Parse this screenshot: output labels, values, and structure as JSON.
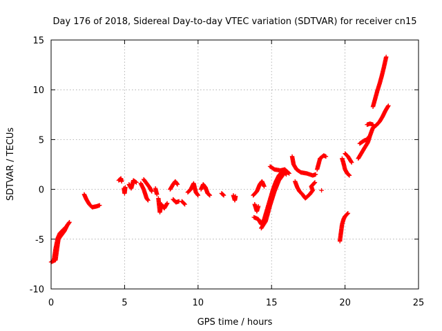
{
  "chart_data": {
    "type": "scatter",
    "title": "Day 176 of 2018, Sidereal Day-to-day VTEC variation (SDTVAR) for receiver cn15",
    "xlabel": "GPS time / hours",
    "ylabel": "SDTVAR / TECUs",
    "xlim": [
      0,
      25
    ],
    "ylim": [
      -10,
      15
    ],
    "xticks": [
      "0",
      "5",
      "10",
      "15",
      "20",
      "25"
    ],
    "yticks": [
      "-10",
      "-5",
      "0",
      "5",
      "10",
      "15"
    ],
    "grid": true,
    "marker": "+",
    "color": "#ff0000",
    "segments": [
      [
        [
          0.0,
          -7.3
        ],
        [
          0.3,
          -7.1
        ],
        [
          0.4,
          -6.0
        ],
        [
          0.5,
          -5.0
        ],
        [
          0.7,
          -4.6
        ],
        [
          0.9,
          -4.2
        ],
        [
          1.1,
          -3.6
        ],
        [
          1.25,
          -3.3
        ]
      ],
      [
        [
          0.2,
          -7.0
        ],
        [
          0.3,
          -6.0
        ],
        [
          0.45,
          -4.9
        ],
        [
          0.6,
          -4.4
        ],
        [
          0.8,
          -4.1
        ],
        [
          1.0,
          -3.8
        ]
      ],
      [
        [
          2.25,
          -0.5
        ],
        [
          2.4,
          -1.0
        ],
        [
          2.6,
          -1.5
        ],
        [
          2.8,
          -1.8
        ],
        [
          3.1,
          -1.7
        ],
        [
          3.3,
          -1.6
        ]
      ],
      [
        [
          4.6,
          0.9
        ],
        [
          4.75,
          1.1
        ],
        [
          4.8,
          0.8
        ]
      ],
      [
        [
          4.95,
          0.1
        ],
        [
          5.0,
          -0.4
        ],
        [
          5.05,
          0.2
        ]
      ],
      [
        [
          5.3,
          0.5
        ],
        [
          5.45,
          0.1
        ],
        [
          5.6,
          0.9
        ],
        [
          5.8,
          0.7
        ]
      ],
      [
        [
          6.1,
          0.6
        ],
        [
          6.3,
          0.0
        ],
        [
          6.5,
          -0.9
        ],
        [
          6.6,
          -1.1
        ]
      ],
      [
        [
          6.3,
          1.0
        ],
        [
          6.5,
          0.6
        ],
        [
          6.7,
          0.2
        ],
        [
          6.85,
          -0.2
        ]
      ],
      [
        [
          7.1,
          0.1
        ],
        [
          7.2,
          -0.5
        ]
      ],
      [
        [
          7.3,
          -0.9
        ],
        [
          7.4,
          -2.3
        ],
        [
          7.5,
          -1.5
        ],
        [
          7.7,
          -1.9
        ],
        [
          7.9,
          -1.4
        ]
      ],
      [
        [
          8.1,
          0.0
        ],
        [
          8.3,
          0.5
        ],
        [
          8.45,
          0.8
        ],
        [
          8.6,
          0.5
        ]
      ],
      [
        [
          8.3,
          -1.0
        ],
        [
          8.5,
          -1.3
        ],
        [
          8.7,
          -1.2
        ]
      ],
      [
        [
          8.9,
          -1.2
        ],
        [
          9.1,
          -1.5
        ]
      ],
      [
        [
          9.3,
          -0.3
        ],
        [
          9.5,
          0.0
        ],
        [
          9.7,
          0.6
        ],
        [
          9.85,
          -0.3
        ],
        [
          10.0,
          -0.6
        ]
      ],
      [
        [
          10.2,
          0.0
        ],
        [
          10.35,
          0.5
        ],
        [
          10.5,
          0.2
        ],
        [
          10.65,
          -0.4
        ],
        [
          10.8,
          -0.6
        ]
      ],
      [
        [
          11.6,
          -0.4
        ],
        [
          11.75,
          -0.6
        ]
      ],
      [
        [
          12.4,
          -0.6
        ],
        [
          12.5,
          -1.1
        ],
        [
          12.55,
          -0.7
        ]
      ],
      [
        [
          13.75,
          -0.6
        ],
        [
          14.0,
          -0.2
        ],
        [
          14.2,
          0.5
        ],
        [
          14.35,
          0.8
        ],
        [
          14.5,
          0.3
        ]
      ],
      [
        [
          13.85,
          -1.5
        ],
        [
          14.0,
          -2.2
        ],
        [
          14.1,
          -1.7
        ]
      ],
      [
        [
          13.8,
          -2.8
        ],
        [
          14.1,
          -3.0
        ],
        [
          14.3,
          -3.5
        ],
        [
          14.5,
          -3.0
        ],
        [
          14.7,
          -2.0
        ],
        [
          14.9,
          -1.0
        ],
        [
          15.1,
          0.0
        ],
        [
          15.3,
          0.8
        ],
        [
          15.5,
          1.4
        ],
        [
          15.8,
          1.9
        ],
        [
          16.0,
          1.5
        ]
      ],
      [
        [
          14.3,
          -3.9
        ],
        [
          14.6,
          -3.2
        ],
        [
          14.9,
          -1.6
        ],
        [
          15.2,
          -0.2
        ],
        [
          15.5,
          0.9
        ],
        [
          15.8,
          1.5
        ]
      ],
      [
        [
          14.9,
          2.3
        ],
        [
          15.2,
          2.0
        ],
        [
          15.6,
          1.9
        ],
        [
          15.9,
          2.0
        ],
        [
          16.2,
          1.6
        ]
      ],
      [
        [
          16.4,
          3.3
        ],
        [
          16.5,
          2.5
        ],
        [
          16.7,
          2.0
        ],
        [
          17.0,
          1.7
        ],
        [
          17.4,
          1.6
        ],
        [
          17.8,
          1.4
        ],
        [
          18.0,
          1.5
        ]
      ],
      [
        [
          16.6,
          0.8
        ],
        [
          16.75,
          0.2
        ],
        [
          16.9,
          -0.2
        ],
        [
          17.1,
          -0.5
        ],
        [
          17.3,
          -0.9
        ],
        [
          17.6,
          -0.5
        ],
        [
          17.8,
          -0.1
        ],
        [
          17.7,
          0.3
        ],
        [
          17.95,
          0.7
        ]
      ],
      [
        [
          18.1,
          2.0
        ],
        [
          18.3,
          3.1
        ],
        [
          18.55,
          3.4
        ],
        [
          18.7,
          3.3
        ]
      ],
      [
        [
          18.4,
          -0.1
        ]
      ],
      [
        [
          19.65,
          -5.2
        ],
        [
          19.7,
          -4.6
        ],
        [
          19.8,
          -3.5
        ],
        [
          19.9,
          -3.0
        ],
        [
          20.0,
          -2.7
        ],
        [
          20.2,
          -2.4
        ]
      ],
      [
        [
          19.8,
          3.1
        ],
        [
          19.9,
          2.6
        ],
        [
          20.0,
          2.0
        ],
        [
          20.15,
          1.6
        ],
        [
          20.3,
          1.4
        ]
      ],
      [
        [
          20.0,
          3.6
        ],
        [
          20.2,
          3.3
        ],
        [
          20.45,
          2.7
        ]
      ],
      [
        [
          20.9,
          3.1
        ],
        [
          21.1,
          3.6
        ],
        [
          21.3,
          4.1
        ],
        [
          21.55,
          4.7
        ],
        [
          21.7,
          5.4
        ],
        [
          21.9,
          6.2
        ],
        [
          22.1,
          6.4
        ],
        [
          22.35,
          6.8
        ],
        [
          22.55,
          7.3
        ],
        [
          22.75,
          7.9
        ],
        [
          22.95,
          8.4
        ]
      ],
      [
        [
          21.0,
          4.6
        ],
        [
          21.3,
          4.9
        ],
        [
          21.5,
          5.0
        ],
        [
          21.65,
          5.3
        ]
      ],
      [
        [
          21.5,
          6.5
        ],
        [
          21.7,
          6.6
        ],
        [
          21.9,
          6.5
        ]
      ],
      [
        [
          21.9,
          8.3
        ],
        [
          22.05,
          9.1
        ],
        [
          22.2,
          9.9
        ],
        [
          22.35,
          10.6
        ],
        [
          22.5,
          11.4
        ],
        [
          22.65,
          12.3
        ],
        [
          22.8,
          13.3
        ]
      ]
    ]
  }
}
